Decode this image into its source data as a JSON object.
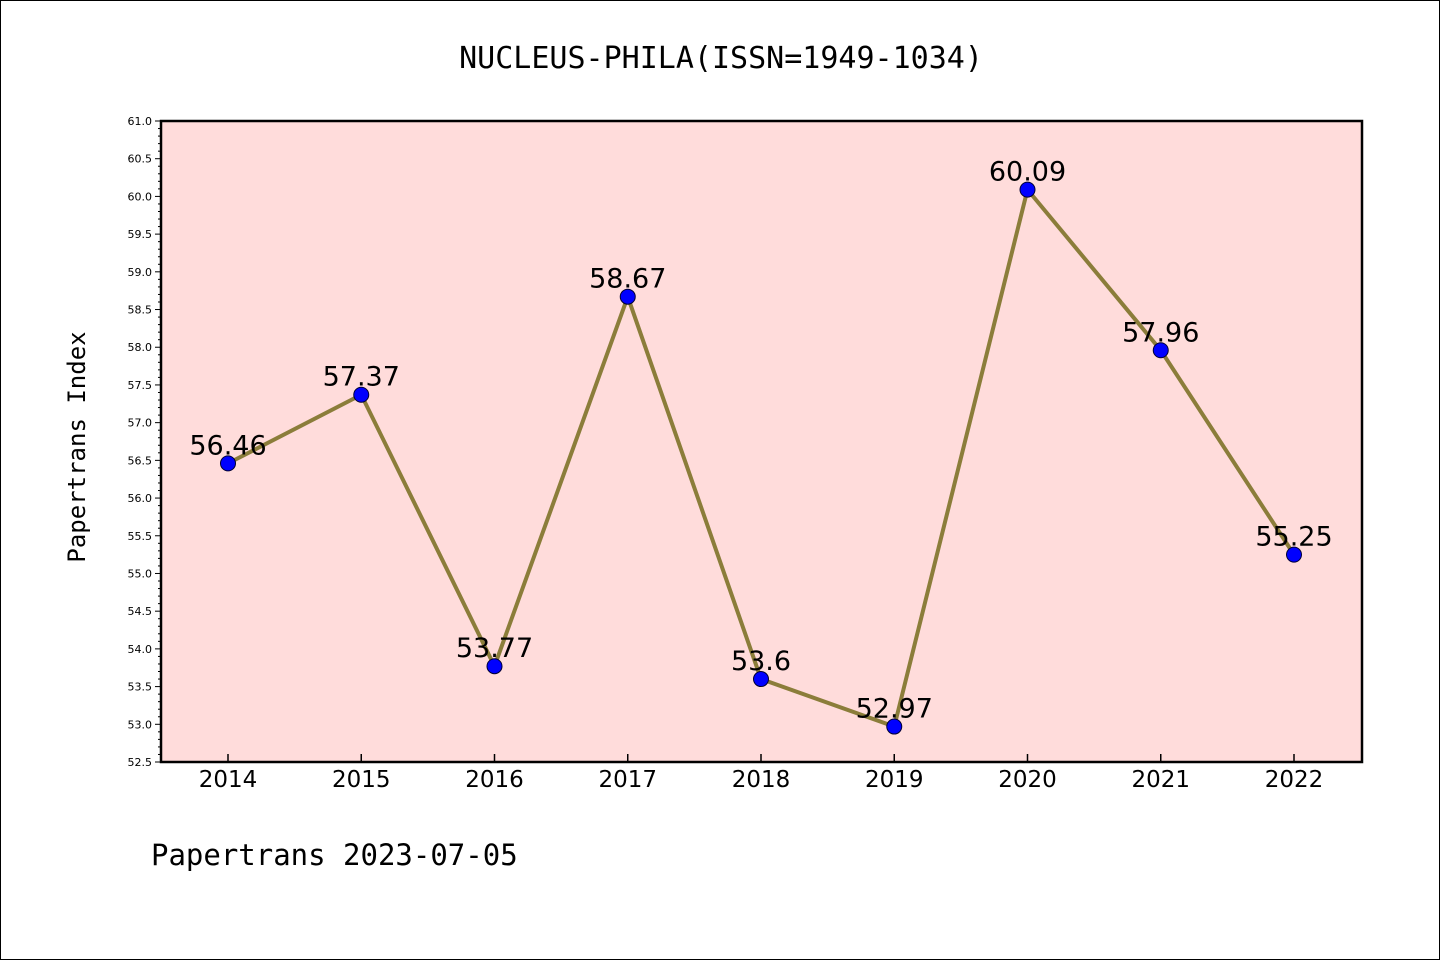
{
  "chart_data": {
    "type": "line",
    "title": "NUCLEUS-PHILA(ISSN=1949-1034)",
    "xlabel": "",
    "ylabel": "Papertrans Index",
    "categories": [
      "2014",
      "2015",
      "2016",
      "2017",
      "2018",
      "2019",
      "2020",
      "2021",
      "2022"
    ],
    "values": [
      56.46,
      57.37,
      53.77,
      58.67,
      53.6,
      52.97,
      60.09,
      57.96,
      55.25
    ],
    "data_labels": [
      "56.46",
      "57.37",
      "53.77",
      "58.67",
      "53.6",
      "52.97",
      "60.09",
      "57.96",
      "55.25"
    ],
    "ylim": [
      52.5,
      61.0
    ],
    "yticks": [
      "52.5",
      "53.0",
      "53.5",
      "54.0",
      "54.5",
      "55.0",
      "55.5",
      "56.0",
      "56.5",
      "57.0",
      "57.5",
      "58.0",
      "58.5",
      "59.0",
      "59.5",
      "60.0",
      "60.5",
      "61.0"
    ],
    "grid": false,
    "legend": "none",
    "colors": {
      "line": "#8b7d3a",
      "marker": "#0000ff",
      "plot_background": "#ffdcdb",
      "axes": "#000000"
    }
  },
  "footer": {
    "text": "Papertrans 2023-07-05"
  }
}
